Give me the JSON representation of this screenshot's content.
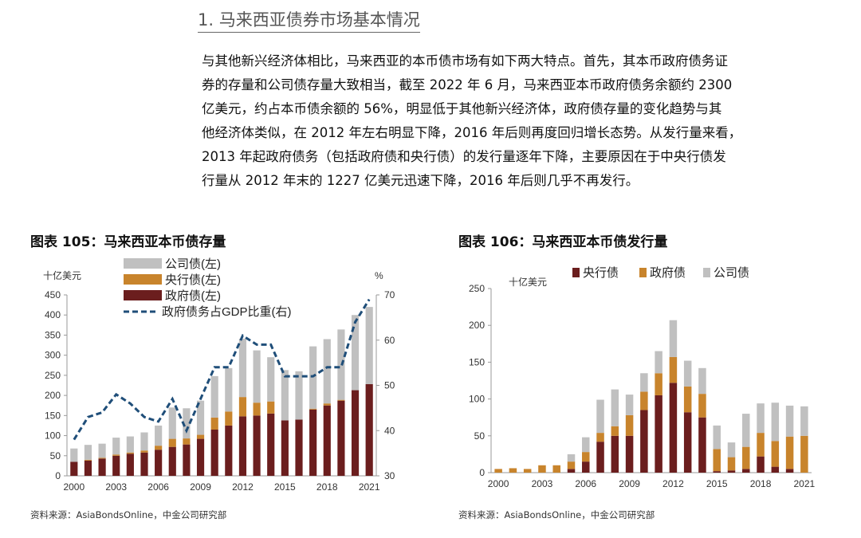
{
  "section_title": "1. 马来西亚债券市场基本情况",
  "paragraph_lines": [
    "与其他新兴经济体相比，马来西亚的本币债市场有如下两大特点。首先，其本币政府债务证",
    "券的存量和公司债存量大致相当，截至 2022 年 6 月，马来西亚本币政府债务余额约 2300",
    "亿美元，约占本币债余额的 56%，明显低于其他新兴经济体，政府债存量的变化趋势与其",
    "他经济体类似，在 2012 年左右明显下降，2016 年后则再度回归增长态势。从发行量来看，",
    "2013 年起政府债务（包括政府债和央行债）的发行量逐年下降，主要原因在于中央行债发",
    "行量从 2012 年末的 1227 亿美元迅速下降，2016 年后则几乎不再发行。"
  ],
  "figure1": {
    "title": "图表 105：马来西亚本币债存量",
    "source": "资料来源：AsiaBondsOnline，中金公司研究部"
  },
  "figure2": {
    "title": "图表 106：马来西亚本币债发行量",
    "source": "资料来源：AsiaBondsOnline，中金公司研究部"
  },
  "chart_data": [
    {
      "type": "bar",
      "stacked": true,
      "x": [
        2000,
        2001,
        2002,
        2003,
        2004,
        2005,
        2006,
        2007,
        2008,
        2009,
        2010,
        2011,
        2012,
        2013,
        2014,
        2015,
        2016,
        2017,
        2018,
        2019,
        2020,
        2021
      ],
      "x_tick_labels": [
        "2000",
        "2003",
        "2006",
        "2009",
        "2012",
        "2015",
        "2018",
        "2021"
      ],
      "ylabel": "十亿美元",
      "ylim": [
        0,
        450
      ],
      "y_ticks": [
        "0",
        "50",
        "100",
        "150",
        "200",
        "250",
        "300",
        "350",
        "400",
        "450"
      ],
      "y2label": "%",
      "y2lim": [
        30,
        70
      ],
      "y2_ticks": [
        "30",
        "40",
        "50",
        "60",
        "70"
      ],
      "legend": {
        "placement": "top-left",
        "entries": [
          "公司债(左)",
          "央行债(左)",
          "政府债(左)",
          "政府债务占GDP比重(右)"
        ]
      },
      "grid": false,
      "series": [
        {
          "name": "政府债(左)",
          "color": "#6b1e1e",
          "values": [
            35,
            38,
            43,
            50,
            55,
            58,
            65,
            72,
            78,
            92,
            115,
            125,
            148,
            150,
            155,
            138,
            140,
            165,
            175,
            187,
            213,
            228
          ]
        },
        {
          "name": "央行债(左)",
          "color": "#c8842c",
          "values": [
            0,
            2,
            2,
            3,
            3,
            5,
            10,
            20,
            15,
            10,
            30,
            35,
            48,
            32,
            30,
            0,
            0,
            2,
            5,
            2,
            0,
            0
          ]
        },
        {
          "name": "公司债(左)",
          "color": "#c0c0c0",
          "values": [
            33,
            37,
            35,
            42,
            40,
            45,
            50,
            78,
            75,
            85,
            103,
            108,
            145,
            130,
            110,
            125,
            120,
            155,
            160,
            175,
            187,
            192
          ]
        },
        {
          "name": "政府债务占GDP比重(右)",
          "type": "line",
          "color": "#1f4e79",
          "dashed": true,
          "values": [
            38,
            43,
            44,
            48,
            46,
            43,
            42,
            47,
            40,
            47,
            54,
            54,
            61,
            59,
            59,
            52,
            52,
            52,
            54,
            54,
            64,
            69
          ]
        }
      ]
    },
    {
      "type": "bar",
      "stacked": true,
      "x": [
        2000,
        2001,
        2002,
        2003,
        2004,
        2005,
        2006,
        2007,
        2008,
        2009,
        2010,
        2011,
        2012,
        2013,
        2014,
        2015,
        2016,
        2017,
        2018,
        2019,
        2020,
        2021
      ],
      "x_tick_labels": [
        "2000",
        "2003",
        "2006",
        "2009",
        "2012",
        "2015",
        "2018",
        "2021"
      ],
      "ylabel": "十亿美元",
      "ylim": [
        0,
        250
      ],
      "y_ticks": [
        "0",
        "50",
        "100",
        "150",
        "200",
        "250"
      ],
      "legend": {
        "placement": "top",
        "entries": [
          "央行债",
          "政府债",
          "公司债"
        ]
      },
      "grid": false,
      "series": [
        {
          "name": "央行债",
          "color": "#6b1e1e",
          "values": [
            0,
            0,
            0,
            0,
            0,
            5,
            15,
            42,
            50,
            50,
            85,
            105,
            122,
            82,
            75,
            2,
            3,
            5,
            22,
            8,
            5,
            0
          ]
        },
        {
          "name": "政府债",
          "color": "#c8842c",
          "values": [
            5,
            6,
            5,
            10,
            10,
            10,
            13,
            12,
            13,
            28,
            25,
            30,
            35,
            35,
            32,
            30,
            18,
            30,
            32,
            35,
            44,
            50
          ]
        },
        {
          "name": "公司债",
          "color": "#c0c0c0",
          "values": [
            0,
            0,
            0,
            0,
            0,
            10,
            20,
            45,
            50,
            28,
            25,
            30,
            50,
            35,
            35,
            32,
            20,
            45,
            40,
            52,
            42,
            40
          ]
        }
      ]
    }
  ]
}
